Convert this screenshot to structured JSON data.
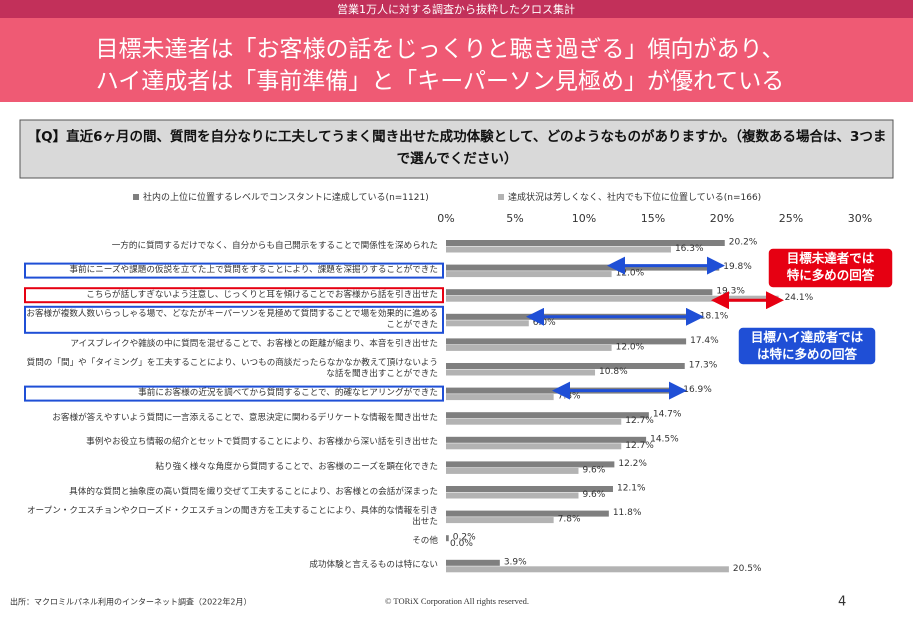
{
  "top_bar": "営業1万人に対する調査から抜粋したクロス集計",
  "title_lines": [
    "目標未達者は「お客様の話をじっくりと聴き過ぎる」傾向があり、",
    "ハイ達成者は「事前準備」と「キーパーソン見極め」が優れている"
  ],
  "question": "【Q】直近6ヶ月の間、質問を自分なりに工夫してうまく聞き出せた成功体験として、どのようなものがありますか。（複数ある場合は、3つまで選んでください）",
  "chart_data": {
    "type": "hbar",
    "categories": [
      "一方的に質問するだけでなく、自分からも自己開示をすることで関係性を深められた",
      "事前にニーズや課題の仮説を立てた上で質問をすることにより、課題を深掘りすることができた",
      "こちらが話しすぎないよう注意し、じっくりと耳を傾けることでお客様から話を引き出せた",
      "お客様が複数人数いらっしゃる場で、どなたがキーパーソンを見極めて質問することで場を効果的に進めることができた",
      "アイスブレイクや雑談の中に質問を混ぜることで、お客様との距離が縮まり、本音を引き出せた",
      "質問の「間」や「タイミング」を工夫することにより、いつもの商談だったらなかなか教えて頂けないような話を聞き出すことができた",
      "事前にお客様の近況を調べてから質問することで、的確なヒアリングができた",
      "お客様が答えやすいよう質問に一言添えることで、意思決定に関わるデリケートな情報を聞き出せた",
      "事例やお役立ち情報の紹介とセットで質問することにより、お客様から深い話を引き出せた",
      "粘り強く様々な角度から質問することで、お客様のニーズを顕在化できた",
      "具体的な質問と抽象度の高い質問を織り交ぜて工夫することにより、お客様との会話が深まった",
      "オープン・クエスチョンやクローズド・クエスチョンの聞き方を工夫することにより、具体的な情報を引き出せた",
      "その他",
      "成功体験と言えるものは特にない"
    ],
    "series": [
      {
        "name": "社内の上位に位置するレベルでコンスタントに達成している(n=1121)",
        "color": "#7f7f7f",
        "values": [
          20.2,
          19.8,
          19.3,
          18.1,
          17.4,
          17.3,
          16.9,
          14.7,
          14.5,
          12.2,
          12.1,
          11.8,
          0.2,
          3.9
        ],
        "value_labels": [
          "20.2%",
          "19.8%",
          "19.3%",
          "18.1%",
          "17.4%",
          "17.3%",
          "16.9%",
          "14.7%",
          "14.5%",
          "12.2%",
          "12.1%",
          "11.8%",
          "0.2%",
          "3.9%"
        ]
      },
      {
        "name": "達成状況は芳しくなく、社内でも下位に位置している(n=166)",
        "color": "#b3b3b3",
        "values": [
          16.3,
          12.0,
          24.1,
          6.0,
          12.0,
          10.8,
          7.8,
          12.7,
          12.7,
          9.6,
          9.6,
          7.8,
          0.0,
          20.5
        ],
        "value_labels": [
          "16.3%",
          "12.0%",
          "24.1%",
          "6.0%",
          "12.0%",
          "10.8%",
          "7.8%",
          "12.7%",
          "12.7%",
          "9.6%",
          "9.6%",
          "7.8%",
          "0.0%",
          "20.5%"
        ]
      }
    ],
    "xlim": [
      0,
      30
    ],
    "xticks": [
      {
        "value": 0,
        "label": "0%"
      },
      {
        "value": 5,
        "label": "5%"
      },
      {
        "value": 10,
        "label": "10%"
      },
      {
        "value": 15,
        "label": "15%"
      },
      {
        "value": 20,
        "label": "20%"
      },
      {
        "value": 25,
        "label": "25%"
      },
      {
        "value": 30,
        "label": "30%"
      }
    ],
    "grid": false
  },
  "callouts": [
    {
      "lines": [
        "目標未達者では",
        "特に多めの回答"
      ],
      "color": "#e60012"
    },
    {
      "lines": [
        "目標ハイ達成者では",
        "は特に多めの回答"
      ],
      "color": "#1f4fd6"
    }
  ],
  "footer": {
    "source": "出所：マクロミルパネル利用のインターネット調査（2022年2月）",
    "copyright": "© TORiX Corporation All rights reserved.",
    "page": "4"
  }
}
